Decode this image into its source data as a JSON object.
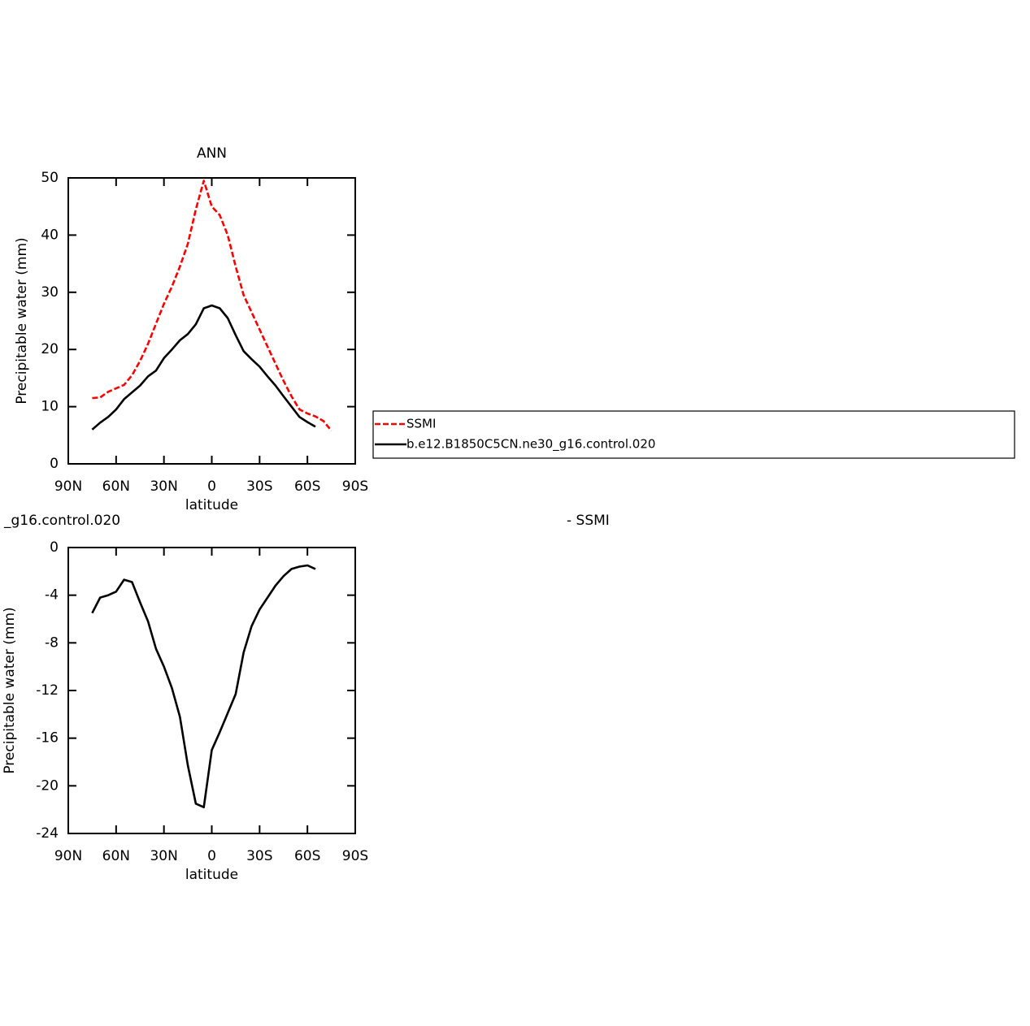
{
  "chart_data": [
    {
      "type": "line",
      "title": "ANN",
      "xlabel": "latitude",
      "ylabel": "Precipitable water (mm)",
      "x": [
        75,
        70,
        65,
        60,
        55,
        50,
        45,
        40,
        35,
        30,
        25,
        20,
        15,
        10,
        5,
        0,
        -5,
        -10,
        -15,
        -20,
        -25,
        -30,
        -35,
        -40,
        -45,
        -50,
        -55,
        -60,
        -65,
        -70,
        -75
      ],
      "series": [
        {
          "name": "SSMI",
          "color": "#ff0000",
          "dashed": true,
          "values": [
            11.5,
            11.6,
            12.6,
            13.2,
            13.8,
            15.5,
            18,
            21,
            24.5,
            28,
            31,
            34.5,
            38.5,
            44.5,
            49.5,
            45,
            43.5,
            40,
            34.5,
            29.5,
            26.5,
            23.5,
            20.5,
            17.5,
            14.5,
            11.8,
            9.5,
            8.8,
            8.3,
            7.5,
            5.8
          ]
        },
        {
          "name": "b.e12.B1850C5CN.ne30_g16.control.020",
          "color": "#000000",
          "dashed": false,
          "values": [
            6.0,
            7.2,
            8.2,
            9.5,
            11.3,
            12.5,
            13.7,
            15.3,
            16.3,
            18.5,
            20,
            21.6,
            22.7,
            24.4,
            27.2,
            27.7,
            27.2,
            25.5,
            22.5,
            19.7,
            18.3,
            17,
            15.3,
            13.7,
            11.8,
            10,
            8.2,
            7.3,
            6.5,
            null,
            null
          ]
        }
      ],
      "xlim": [
        90,
        -90
      ],
      "xticks": [
        {
          "value": 90,
          "label": "90N"
        },
        {
          "value": 60,
          "label": "60N"
        },
        {
          "value": 30,
          "label": "30N"
        },
        0,
        {
          "value": -30,
          "label": "30S"
        },
        {
          "value": -60,
          "label": "60S"
        },
        {
          "value": -90,
          "label": "90S"
        }
      ],
      "ylim": [
        0,
        50
      ],
      "yticks": [
        0,
        10,
        20,
        30,
        40,
        50
      ],
      "legend": true
    },
    {
      "type": "line",
      "title": "_g16.control.020",
      "title_right": "- SSMI",
      "xlabel": "latitude",
      "ylabel": "Precipitable water (mm)",
      "x": [
        75,
        70,
        65,
        60,
        55,
        50,
        45,
        40,
        35,
        30,
        25,
        20,
        15,
        10,
        5,
        0,
        -5,
        -10,
        -15,
        -20,
        -25,
        -30,
        -35,
        -40,
        -45,
        -50,
        -55,
        -60,
        -65,
        -70,
        -75
      ],
      "series": [
        {
          "color": "#000000",
          "dashed": false,
          "values": [
            -5.5,
            -4.2,
            -4.0,
            -3.7,
            -2.7,
            -2.9,
            -4.6,
            -6.2,
            -8.5,
            -10.0,
            -11.8,
            -14.2,
            -18.3,
            -21.5,
            -21.8,
            -17.0,
            -15.5,
            -13.9,
            -12.3,
            -8.8,
            -6.6,
            -5.2,
            -4.2,
            -3.2,
            -2.4,
            -1.8,
            -1.6,
            -1.5,
            -1.8,
            null,
            null
          ]
        }
      ],
      "xlim": [
        90,
        -90
      ],
      "xticks": [
        {
          "value": 90,
          "label": "90N"
        },
        {
          "value": 60,
          "label": "60N"
        },
        {
          "value": 30,
          "label": "30N"
        },
        0,
        {
          "value": -30,
          "label": "30S"
        },
        {
          "value": -60,
          "label": "60S"
        },
        {
          "value": -90,
          "label": "90S"
        }
      ],
      "ylim": [
        -24,
        0
      ],
      "yticks": [
        -24,
        -20,
        -16,
        -12,
        -8,
        -4,
        0
      ],
      "legend": false
    }
  ]
}
